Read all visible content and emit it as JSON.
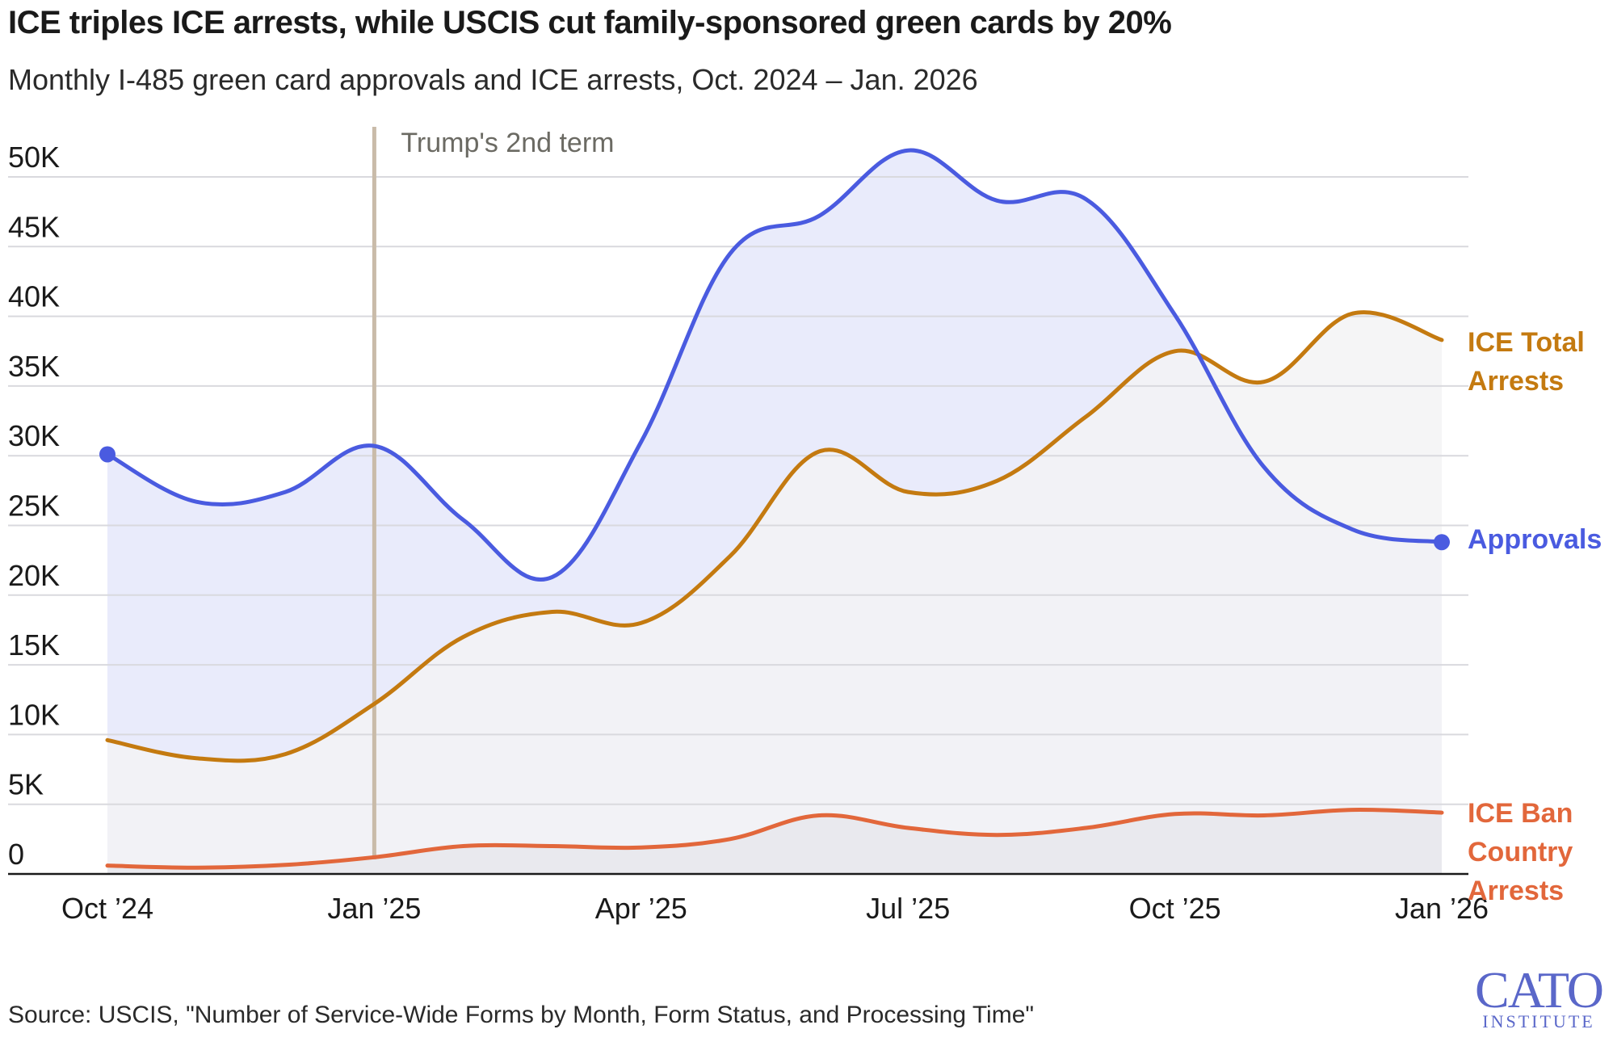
{
  "header": {
    "title": "ICE triples ICE arrests, while USCIS cut family-sponsored green cards by 20%",
    "subtitle": "Monthly I-485 green card approvals and ICE arrests, Oct. 2024 – Jan. 2026"
  },
  "footer": {
    "source": "Source: USCIS, \"Number of Service-Wide Forms by Month, Form Status, and Processing Time\"",
    "logo_main": "CATO",
    "logo_sub": "INSTITUTE"
  },
  "chart_data": {
    "type": "line",
    "title": "ICE triples ICE arrests, while USCIS cut family-sponsored green cards by 20%",
    "subtitle": "Monthly I-485 green card approvals and ICE arrests, Oct. 2024 – Jan. 2026",
    "x": [
      "2024-10",
      "2024-11",
      "2024-12",
      "2025-01",
      "2025-02",
      "2025-03",
      "2025-04",
      "2025-05",
      "2025-06",
      "2025-07",
      "2025-08",
      "2025-09",
      "2025-10",
      "2025-11",
      "2025-12",
      "2026-01"
    ],
    "x_tick_labels": [
      "Oct ’24",
      "Jan ’25",
      "Apr ’25",
      "Jul ’25",
      "Oct ’25",
      "Jan ’26"
    ],
    "x_tick_positions": [
      "2024-10",
      "2025-01",
      "2025-04",
      "2025-07",
      "2025-10",
      "2026-01"
    ],
    "y_tick_labels": [
      "0",
      "5K",
      "10K",
      "15K",
      "20K",
      "25K",
      "30K",
      "35K",
      "40K",
      "45K",
      "50K"
    ],
    "y_tick_values": [
      0,
      5000,
      10000,
      15000,
      20000,
      25000,
      30000,
      35000,
      40000,
      45000,
      50000
    ],
    "ylim": [
      0,
      52000
    ],
    "grid": true,
    "legend": "direct labels at right end of lines",
    "series": [
      {
        "name": "Approvals",
        "label_lines": [
          "Approvals"
        ],
        "color": "#4a5be0",
        "fill": "#e9ebfb",
        "end_marker": true,
        "start_marker": true,
        "values": [
          30100,
          26700,
          27400,
          30700,
          25400,
          21300,
          31000,
          44500,
          47200,
          51900,
          48300,
          48400,
          40100,
          29200,
          24700,
          23800
        ]
      },
      {
        "name": "ICE Total Arrests",
        "label_lines": [
          "ICE Total",
          "Arrests"
        ],
        "color": "#c47a10",
        "fill": "#f3f3f5",
        "values": [
          9600,
          8300,
          8600,
          12200,
          17000,
          18800,
          18000,
          22800,
          30300,
          27400,
          28200,
          32800,
          37500,
          35300,
          40200,
          38300
        ]
      },
      {
        "name": "ICE Ban Country Arrests",
        "label_lines": [
          "ICE Ban",
          "Country",
          "Arrests"
        ],
        "color": "#e2673b",
        "values": [
          600,
          450,
          650,
          1200,
          2000,
          2000,
          1900,
          2500,
          4200,
          3300,
          2800,
          3300,
          4300,
          4200,
          4600,
          4400
        ]
      }
    ],
    "annotations": [
      {
        "text": "Trump's 2nd term",
        "x": "2025-01",
        "color": "#c9bba9"
      }
    ]
  }
}
